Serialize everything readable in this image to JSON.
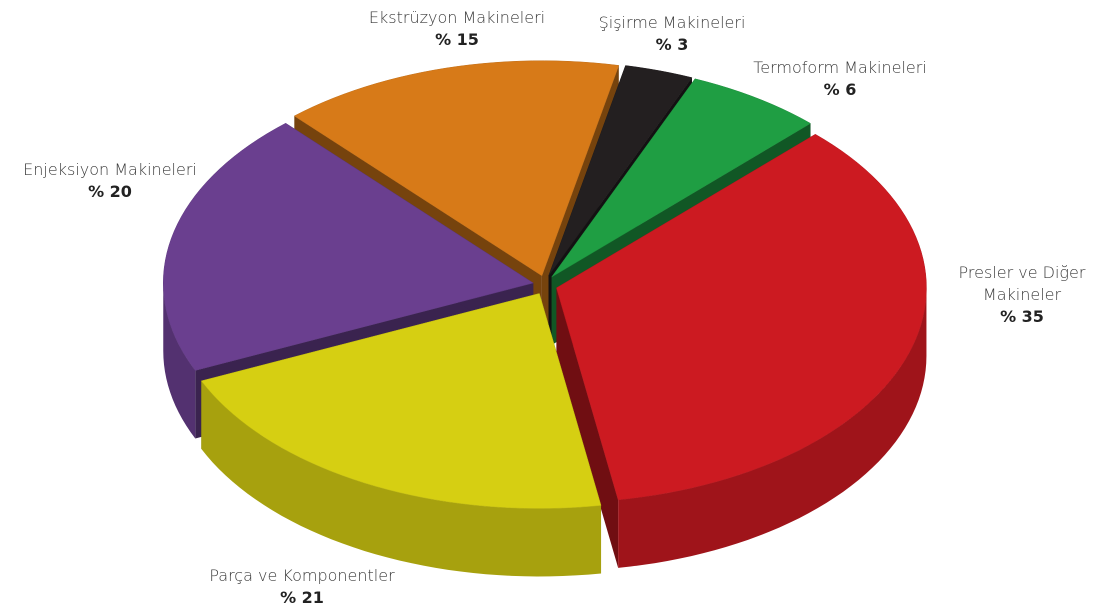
{
  "chart_data": {
    "type": "pie",
    "categories": [
      "Şişirme Makineleri",
      "Termoform Makineleri",
      "Presler ve Diğer Makineler",
      "Parça ve Komponentler",
      "Enjeksiyon Makineleri",
      "Ekstrüzyon Makineleri"
    ],
    "values": [
      3,
      6,
      35,
      21,
      20,
      15
    ],
    "value_labels": [
      "% 3",
      "% 6",
      "% 35",
      "% 21",
      "% 20",
      "% 15"
    ],
    "colors": [
      "#231f20",
      "#1f9e43",
      "#cc1a21",
      "#d6cf12",
      "#6a3f8f",
      "#d77a18"
    ]
  }
}
